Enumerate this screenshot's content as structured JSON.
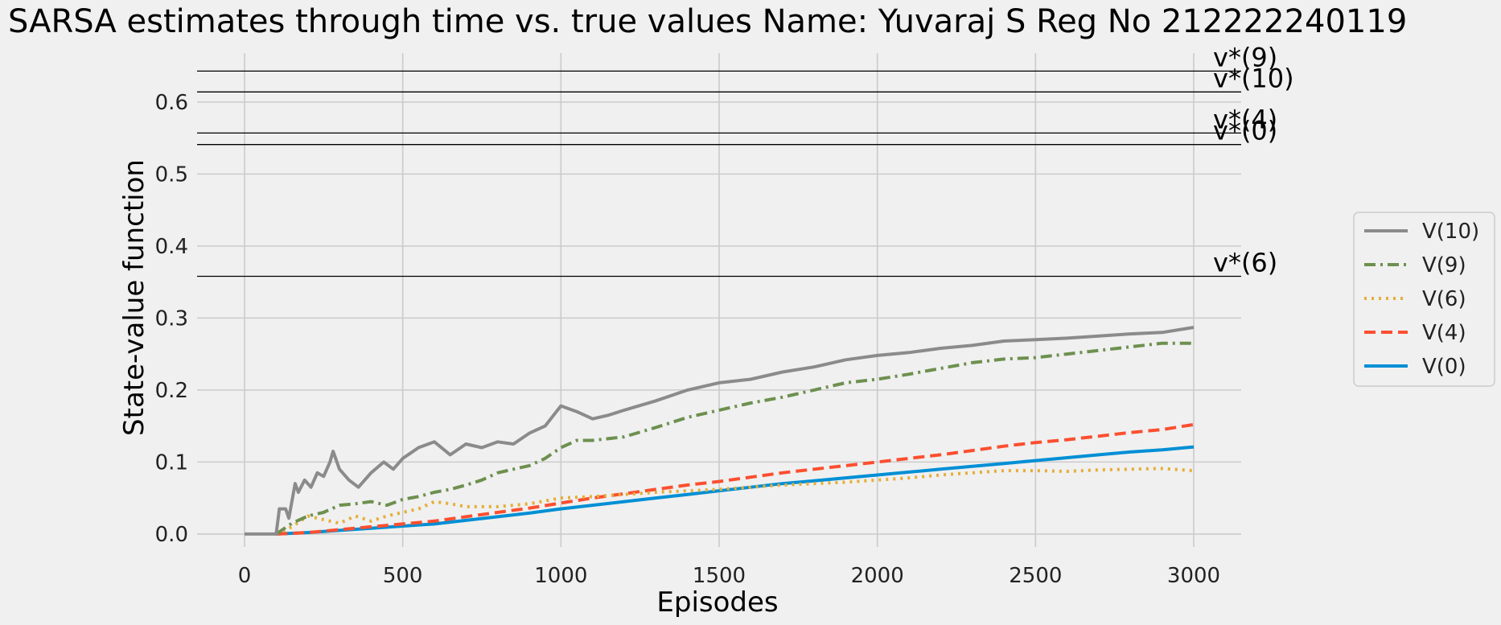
{
  "chart_data": {
    "type": "line",
    "title": "SARSA estimates through time vs. true values    Name: Yuvaraj S    Reg No 212222240119",
    "xlabel": "Episodes",
    "ylabel": "State-value function",
    "xlim": [
      -150,
      3150
    ],
    "ylim": [
      -0.018,
      0.668
    ],
    "xticks": [
      0,
      500,
      1000,
      1500,
      2000,
      2500,
      3000
    ],
    "yticks": [
      0.0,
      0.1,
      0.2,
      0.3,
      0.4,
      0.5,
      0.6
    ],
    "grid": true,
    "legend_position": "right",
    "reference_lines": [
      {
        "label": "v*(9)",
        "value": 0.643
      },
      {
        "label": "v*(10)",
        "value": 0.614
      },
      {
        "label": "v*(4)",
        "value": 0.557
      },
      {
        "label": "v*(0)",
        "value": 0.541
      },
      {
        "label": "v*(6)",
        "value": 0.358
      }
    ],
    "series": [
      {
        "name": "V(10)",
        "color": "#8b8b8b",
        "style": "solid",
        "x": [
          0,
          100,
          110,
          130,
          140,
          160,
          170,
          190,
          210,
          230,
          250,
          270,
          280,
          300,
          330,
          360,
          400,
          440,
          470,
          500,
          550,
          600,
          650,
          700,
          750,
          800,
          850,
          900,
          950,
          1000,
          1050,
          1100,
          1150,
          1200,
          1300,
          1400,
          1500,
          1600,
          1700,
          1800,
          1900,
          2000,
          2100,
          2200,
          2300,
          2400,
          2500,
          2600,
          2700,
          2800,
          2900,
          3000
        ],
        "y": [
          0,
          0,
          0.035,
          0.035,
          0.022,
          0.07,
          0.058,
          0.075,
          0.065,
          0.085,
          0.08,
          0.1,
          0.115,
          0.09,
          0.075,
          0.065,
          0.085,
          0.1,
          0.09,
          0.105,
          0.12,
          0.128,
          0.11,
          0.125,
          0.12,
          0.128,
          0.125,
          0.14,
          0.15,
          0.178,
          0.17,
          0.16,
          0.165,
          0.172,
          0.185,
          0.2,
          0.21,
          0.215,
          0.225,
          0.232,
          0.242,
          0.248,
          0.252,
          0.258,
          0.262,
          0.268,
          0.27,
          0.272,
          0.275,
          0.278,
          0.28,
          0.287
        ]
      },
      {
        "name": "V(9)",
        "color": "#6d904f",
        "style": "dashdot",
        "x": [
          100,
          150,
          200,
          250,
          300,
          350,
          400,
          450,
          500,
          550,
          600,
          650,
          700,
          750,
          800,
          850,
          900,
          950,
          1000,
          1050,
          1100,
          1200,
          1300,
          1400,
          1500,
          1600,
          1700,
          1800,
          1900,
          2000,
          2100,
          2200,
          2300,
          2400,
          2500,
          2600,
          2700,
          2800,
          2900,
          3000
        ],
        "y": [
          0,
          0.015,
          0.025,
          0.03,
          0.04,
          0.042,
          0.045,
          0.04,
          0.048,
          0.052,
          0.058,
          0.062,
          0.068,
          0.075,
          0.085,
          0.09,
          0.095,
          0.105,
          0.12,
          0.13,
          0.13,
          0.135,
          0.148,
          0.162,
          0.172,
          0.182,
          0.19,
          0.2,
          0.21,
          0.215,
          0.222,
          0.23,
          0.238,
          0.243,
          0.245,
          0.25,
          0.255,
          0.26,
          0.265,
          0.265
        ]
      },
      {
        "name": "V(6)",
        "color": "#e5ae38",
        "style": "dotted",
        "x": [
          100,
          150,
          200,
          250,
          300,
          350,
          400,
          450,
          500,
          550,
          600,
          650,
          700,
          800,
          900,
          1000,
          1100,
          1200,
          1300,
          1400,
          1500,
          1600,
          1700,
          1800,
          1900,
          2000,
          2100,
          2200,
          2300,
          2400,
          2500,
          2600,
          2700,
          2800,
          2900,
          3000
        ],
        "y": [
          0,
          0.01,
          0.025,
          0.02,
          0.015,
          0.025,
          0.018,
          0.025,
          0.03,
          0.035,
          0.045,
          0.042,
          0.038,
          0.038,
          0.042,
          0.05,
          0.052,
          0.055,
          0.058,
          0.06,
          0.062,
          0.065,
          0.068,
          0.07,
          0.072,
          0.075,
          0.078,
          0.082,
          0.085,
          0.088,
          0.088,
          0.087,
          0.089,
          0.09,
          0.091,
          0.088
        ]
      },
      {
        "name": "V(4)",
        "color": "#fc4f30",
        "style": "dashed",
        "x": [
          100,
          200,
          300,
          400,
          500,
          600,
          700,
          800,
          900,
          1000,
          1100,
          1200,
          1300,
          1400,
          1500,
          1600,
          1700,
          1800,
          1900,
          2000,
          2100,
          2200,
          2300,
          2400,
          2500,
          2600,
          2700,
          2800,
          2900,
          3000
        ],
        "y": [
          0,
          0.002,
          0.006,
          0.01,
          0.014,
          0.018,
          0.024,
          0.03,
          0.036,
          0.043,
          0.05,
          0.056,
          0.062,
          0.068,
          0.073,
          0.079,
          0.085,
          0.09,
          0.095,
          0.1,
          0.105,
          0.11,
          0.116,
          0.122,
          0.127,
          0.131,
          0.136,
          0.141,
          0.145,
          0.152
        ]
      },
      {
        "name": "V(0)",
        "color": "#008fd5",
        "style": "solid",
        "x": [
          100,
          200,
          300,
          400,
          500,
          600,
          700,
          800,
          900,
          1000,
          1100,
          1200,
          1300,
          1400,
          1500,
          1600,
          1700,
          1800,
          1900,
          2000,
          2100,
          2200,
          2300,
          2400,
          2500,
          2600,
          2700,
          2800,
          2900,
          3000
        ],
        "y": [
          0,
          0.002,
          0.005,
          0.008,
          0.011,
          0.014,
          0.019,
          0.024,
          0.029,
          0.035,
          0.04,
          0.045,
          0.05,
          0.055,
          0.06,
          0.065,
          0.07,
          0.074,
          0.078,
          0.082,
          0.086,
          0.09,
          0.094,
          0.098,
          0.102,
          0.106,
          0.11,
          0.114,
          0.117,
          0.121
        ]
      }
    ]
  }
}
